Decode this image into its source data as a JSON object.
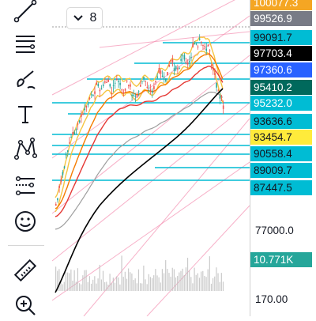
{
  "toolbar": {
    "tools": [
      {
        "name": "trend-line-tool",
        "icon": "trend-line-icon"
      },
      {
        "name": "fib-retracement-tool",
        "icon": "fib-lines-icon"
      },
      {
        "name": "brush-tool",
        "icon": "brush-icon"
      },
      {
        "name": "text-tool",
        "icon": "text-icon"
      },
      {
        "name": "pattern-tool",
        "icon": "pattern-icon"
      },
      {
        "name": "prediction-tool",
        "icon": "prediction-icon"
      },
      {
        "name": "emoji-tool",
        "icon": "smiley-icon"
      },
      {
        "name": "measure-tool",
        "icon": "ruler-icon"
      },
      {
        "name": "zoom-tool",
        "icon": "zoom-in-icon"
      }
    ]
  },
  "interval_selector": {
    "chevron": "chevron-down-icon",
    "count": "8"
  },
  "price_tags": [
    {
      "text": "100077.3",
      "bg": "#f5a623",
      "fg": "#ffffff"
    },
    {
      "text": "99526.9",
      "bg": "#787b86",
      "fg": "#ffffff"
    },
    {
      "text": "99091.7",
      "bg": "#00bcd4",
      "fg": "#131722"
    },
    {
      "text": "97703.4",
      "bg": "#000000",
      "fg": "#ffffff"
    },
    {
      "text": "97360.6",
      "bg": "#2962ff",
      "fg": "#ffffff"
    },
    {
      "text": "95410.2",
      "bg": "#00695c",
      "fg": "#ffffff"
    },
    {
      "text": "95232.0",
      "bg": "#00bcd4",
      "fg": "#ffffff"
    },
    {
      "text": "93636.6",
      "bg": "#00bcd4",
      "fg": "#131722"
    },
    {
      "text": "93454.7",
      "bg": "#ffeb3b",
      "fg": "#131722"
    },
    {
      "text": "90558.4",
      "bg": "#00bcd4",
      "fg": "#131722"
    },
    {
      "text": "89009.7",
      "bg": "#00bcd4",
      "fg": "#131722"
    },
    {
      "text": "87447.5",
      "bg": "#00bcd4",
      "fg": "#131722"
    }
  ],
  "axis_label_price": "77000.0",
  "volume_tag": {
    "text": "10.771K",
    "bg": "#26a69a",
    "fg": "#ffffff"
  },
  "axis_label_volume": "170.00",
  "colors": {
    "candle_up": "#26a69a",
    "candle_down": "#ef5350",
    "ma_black": "#000000",
    "ma_yellow": "#f5c542",
    "ma_orange": "#f57c00",
    "ma_red": "#e53935",
    "ma_gray": "#9e9e9e",
    "level_line": "#00bcd4",
    "trend_pink": "#f48fb1"
  }
}
